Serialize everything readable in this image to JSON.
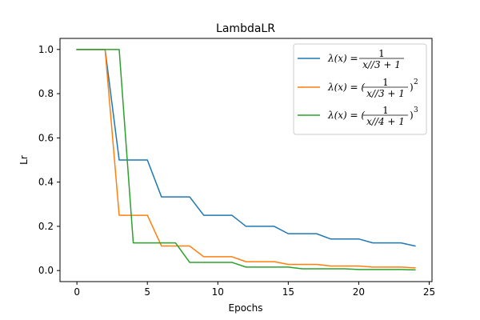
{
  "chart_data": {
    "type": "line",
    "title": "LambdaLR",
    "xlabel": "Epochs",
    "ylabel": "Lr",
    "xlim": [
      -1.2,
      25.2
    ],
    "ylim": [
      -0.05,
      1.05
    ],
    "x_ticks": [
      0,
      5,
      10,
      15,
      20,
      25
    ],
    "y_ticks": [
      0.0,
      0.2,
      0.4,
      0.6,
      0.8,
      1.0
    ],
    "x_tick_labels": [
      "0",
      "5",
      "10",
      "15",
      "20",
      "25"
    ],
    "y_tick_labels": [
      "0.0",
      "0.2",
      "0.4",
      "0.6",
      "0.8",
      "1.0"
    ],
    "legend_position": "top-right",
    "grid": false,
    "x": [
      0,
      1,
      2,
      3,
      4,
      5,
      6,
      7,
      8,
      9,
      10,
      11,
      12,
      13,
      14,
      15,
      16,
      17,
      18,
      19,
      20,
      21,
      22,
      23,
      24
    ],
    "series": [
      {
        "name": "λ(x) = 1 / (x//3 + 1)",
        "color": "#1f77b4",
        "legend": {
          "lhs": "λ(x) =",
          "num": "1",
          "den": "x//3 + 1",
          "pow": ""
        },
        "values": [
          1,
          1,
          1,
          0.5,
          0.5,
          0.5,
          0.3333,
          0.3333,
          0.3333,
          0.25,
          0.25,
          0.25,
          0.2,
          0.2,
          0.2,
          0.1667,
          0.1667,
          0.1667,
          0.1429,
          0.1429,
          0.1429,
          0.125,
          0.125,
          0.125,
          0.1111
        ]
      },
      {
        "name": "λ(x) = (1 / (x//3 + 1))^2",
        "color": "#ff7f0e",
        "legend": {
          "lhs": "λ(x) = (",
          "num": "1",
          "den": "x//3 + 1",
          "pow": "2"
        },
        "values": [
          1,
          1,
          1,
          0.25,
          0.25,
          0.25,
          0.1111,
          0.1111,
          0.1111,
          0.0625,
          0.0625,
          0.0625,
          0.04,
          0.04,
          0.04,
          0.0278,
          0.0278,
          0.0278,
          0.0204,
          0.0204,
          0.0204,
          0.0156,
          0.0156,
          0.0156,
          0.0123
        ]
      },
      {
        "name": "λ(x) = (1 / (x//4 + 1))^3",
        "color": "#2ca02c",
        "legend": {
          "lhs": "λ(x) = (",
          "num": "1",
          "den": "x//4 + 1",
          "pow": "3"
        },
        "values": [
          1,
          1,
          1,
          1,
          0.125,
          0.125,
          0.125,
          0.125,
          0.037,
          0.037,
          0.037,
          0.037,
          0.0156,
          0.0156,
          0.0156,
          0.0156,
          0.008,
          0.008,
          0.008,
          0.008,
          0.0046,
          0.0046,
          0.0046,
          0.0046,
          0.0029
        ]
      }
    ]
  }
}
